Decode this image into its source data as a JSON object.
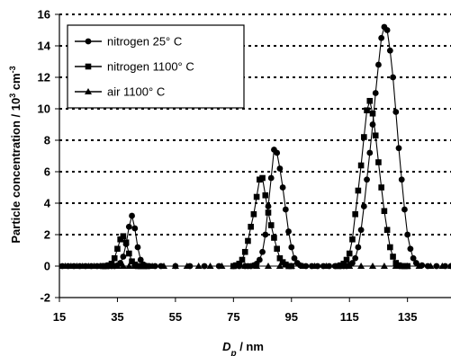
{
  "chart_data": {
    "type": "line",
    "title": "",
    "xlabel": {
      "main": "D",
      "sub": "p",
      "rest": " / nm"
    },
    "ylabel": {
      "pre": "Particle concentration / 10",
      "sup": "3",
      "mid": " cm",
      "sup2": "-3"
    },
    "xlim": [
      15,
      150
    ],
    "ylim": [
      -2,
      16
    ],
    "x_ticks": [
      15,
      35,
      55,
      75,
      95,
      115,
      135
    ],
    "y_ticks": [
      -2,
      0,
      2,
      4,
      6,
      8,
      10,
      12,
      14,
      16
    ],
    "grid": "dotted horizontal",
    "legend_position": "top-left",
    "series": [
      {
        "name": "nitrogen 25° C",
        "marker": "circle",
        "x": [
          14,
          16,
          18,
          20,
          22,
          24,
          26,
          28,
          30,
          31,
          32,
          33,
          34,
          35,
          36,
          37,
          38,
          39,
          40,
          41,
          42,
          43,
          44,
          45,
          46,
          48,
          50,
          55,
          60,
          65,
          70,
          75,
          77,
          79,
          80,
          81,
          82,
          83,
          84,
          85,
          86,
          87,
          88,
          89,
          90,
          91,
          92,
          93,
          94,
          95,
          96,
          97,
          98,
          100,
          102,
          104,
          106,
          108,
          110,
          112,
          113,
          114,
          115,
          116,
          117,
          118,
          119,
          120,
          121,
          122,
          123,
          124,
          125,
          126,
          127,
          128,
          129,
          130,
          131,
          132,
          133,
          134,
          135,
          136,
          137,
          138,
          140,
          142,
          145,
          148,
          150
        ],
        "y": [
          0,
          0,
          0,
          0,
          0,
          0,
          0,
          0,
          0,
          0,
          0,
          0,
          0,
          0.05,
          0.2,
          0.6,
          1.4,
          2.5,
          3.2,
          2.4,
          1.2,
          0.4,
          0.1,
          0,
          0,
          0,
          0,
          0,
          0,
          0,
          0,
          0,
          0,
          0,
          0,
          0,
          0.05,
          0.15,
          0.4,
          0.9,
          2,
          3.8,
          5.6,
          7.4,
          7.2,
          6.2,
          5,
          3.6,
          2.2,
          1.2,
          0.5,
          0.2,
          0.05,
          0,
          0,
          0,
          0,
          0,
          0,
          0,
          0,
          0,
          0.05,
          0.2,
          0.5,
          1.2,
          2.3,
          3.8,
          5.5,
          7.2,
          9,
          11,
          12.8,
          14.5,
          15.2,
          15,
          13.7,
          12,
          9.8,
          7.5,
          5.5,
          3.6,
          2,
          1.1,
          0.5,
          0.2,
          0.05,
          0,
          0,
          0,
          0
        ]
      },
      {
        "name": "nitrogen 1100° C",
        "marker": "square",
        "x": [
          30,
          31,
          32,
          33,
          34,
          35,
          36,
          37,
          38,
          39,
          40,
          41,
          42,
          43,
          44,
          45,
          75,
          76,
          77,
          78,
          79,
          80,
          81,
          82,
          83,
          84,
          85,
          86,
          87,
          88,
          89,
          90,
          91,
          92,
          93,
          94,
          95,
          111,
          112,
          113,
          114,
          115,
          116,
          117,
          118,
          119,
          120,
          121,
          122,
          123,
          124,
          125,
          126,
          127,
          128,
          129,
          130,
          131,
          132,
          133,
          134,
          135
        ],
        "y": [
          0,
          0,
          0.05,
          0.15,
          0.5,
          1.1,
          1.7,
          1.9,
          1.5,
          0.8,
          0.3,
          0.1,
          0,
          0,
          0,
          0,
          0,
          0.05,
          0.15,
          0.4,
          0.9,
          1.6,
          2.5,
          3.3,
          4.4,
          5.5,
          5.6,
          4.5,
          3.4,
          2.6,
          1.8,
          1.1,
          0.5,
          0.25,
          0.1,
          0,
          0,
          0,
          0.05,
          0.15,
          0.4,
          0.8,
          1.7,
          3.3,
          4.8,
          6.4,
          8.2,
          9.9,
          10.5,
          9.7,
          8.3,
          6.6,
          5,
          3.5,
          2.3,
          1.2,
          0.6,
          0.2,
          0.05,
          0,
          0,
          0
        ]
      },
      {
        "name": "air 1100° C",
        "marker": "triangle",
        "x": [
          15,
          17,
          19,
          21,
          23,
          25,
          27,
          29,
          31,
          33,
          35,
          37,
          39,
          41,
          43,
          45,
          47,
          51,
          55,
          59,
          63,
          67,
          71,
          75,
          79,
          83,
          87,
          91,
          95,
          99,
          103,
          107,
          111,
          115,
          119,
          123,
          127,
          131,
          135,
          139,
          143,
          147,
          150
        ],
        "y": [
          0,
          0,
          0,
          0,
          0,
          0,
          0,
          0,
          0,
          0,
          0,
          0,
          0,
          0,
          0,
          0,
          0,
          0,
          0,
          0,
          0,
          0,
          0,
          0,
          0,
          0,
          0,
          0,
          0,
          0,
          0,
          0,
          0,
          0,
          0,
          0,
          0,
          0,
          0,
          0,
          0,
          0,
          0
        ]
      }
    ]
  }
}
